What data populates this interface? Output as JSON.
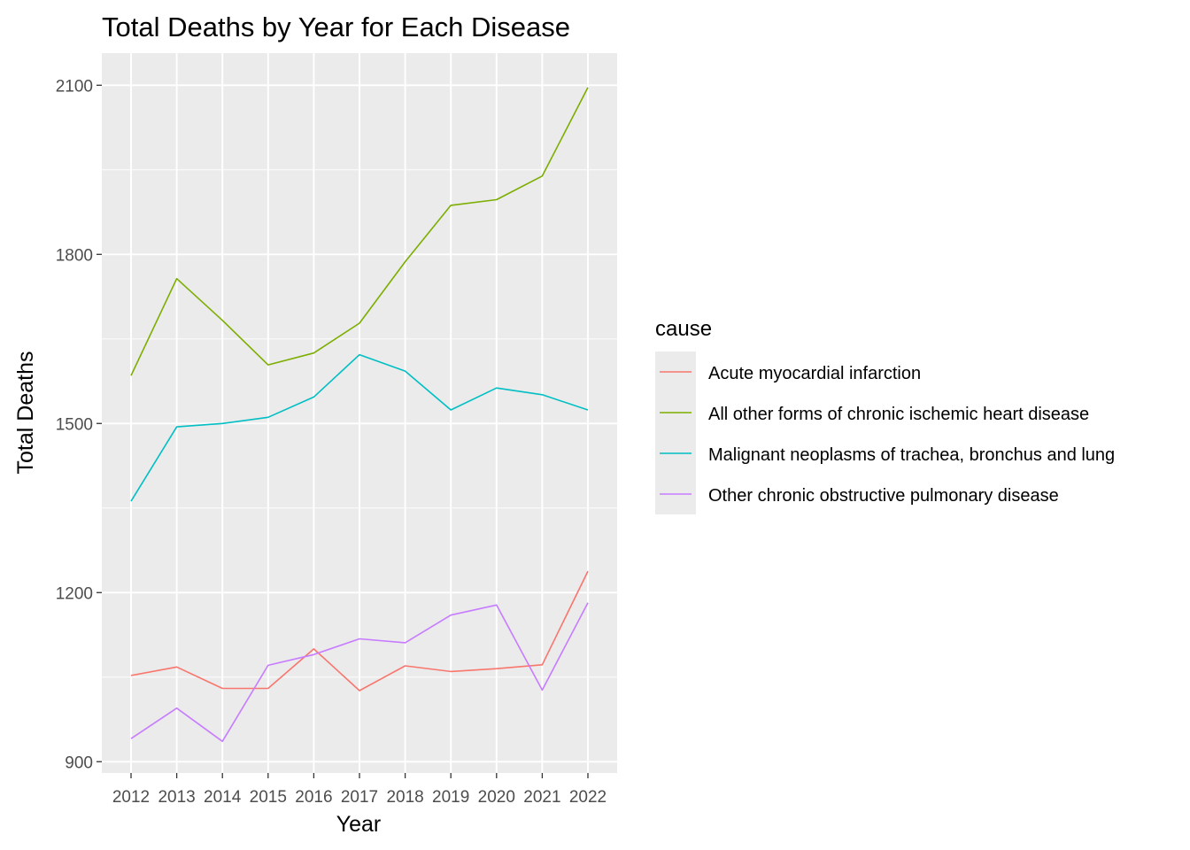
{
  "chart_data": {
    "type": "line",
    "title": "Total Deaths by Year for Each Disease",
    "xlabel": "Year",
    "ylabel": "Total Deaths",
    "x": [
      "2012",
      "2013",
      "2014",
      "2015",
      "2016",
      "2017",
      "2018",
      "2019",
      "2020",
      "2021",
      "2022"
    ],
    "y_ticks": [
      900,
      1200,
      1500,
      1800,
      2100
    ],
    "ylim": [
      880,
      2157
    ],
    "grid": true,
    "panel_background": "#ebebeb",
    "legend": {
      "title": "cause",
      "position": "right"
    },
    "series": [
      {
        "name": "Acute myocardial infarction",
        "color": "#F8766D",
        "values": [
          1053,
          1068,
          1030,
          1030,
          1100,
          1026,
          1070,
          1060,
          1065,
          1072,
          1238
        ]
      },
      {
        "name": "All other forms of chronic ischemic heart disease",
        "color": "#7CAE00",
        "values": [
          1585,
          1757,
          1683,
          1604,
          1625,
          1678,
          1787,
          1887,
          1897,
          1939,
          2096
        ]
      },
      {
        "name": "Malignant neoplasms of trachea, bronchus and lung",
        "color": "#00BFC4",
        "values": [
          1362,
          1494,
          1500,
          1511,
          1547,
          1622,
          1593,
          1524,
          1563,
          1551,
          1524
        ]
      },
      {
        "name": "Other chronic obstructive pulmonary disease",
        "color": "#C77CFF",
        "values": [
          941,
          995,
          936,
          1071,
          1090,
          1118,
          1111,
          1160,
          1178,
          1027,
          1182
        ]
      }
    ]
  }
}
